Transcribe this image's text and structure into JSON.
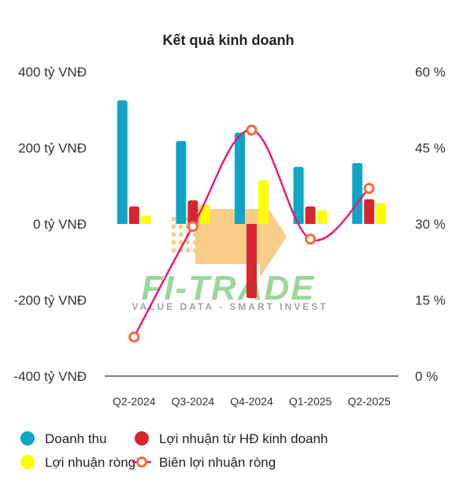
{
  "chart_data": {
    "type": "bar",
    "title": "Kết quả kinh doanh",
    "categories": [
      "Q2-2024",
      "Q3-2024",
      "Q4-2024",
      "Q1-2025",
      "Q2-2025"
    ],
    "series": [
      {
        "name": "Doanh thu",
        "type": "bar",
        "axis": "left",
        "color": "#0ea5c6",
        "values": [
          325,
          218,
          240,
          150,
          160
        ]
      },
      {
        "name": "Lợi nhuận từ HĐ kinh doanh",
        "type": "bar",
        "axis": "left",
        "color": "#d7262f",
        "values": [
          46,
          62,
          -195,
          46,
          65
        ]
      },
      {
        "name": "Lợi nhuận ròng",
        "type": "bar",
        "axis": "left",
        "color": "#ffff00",
        "values": [
          22,
          50,
          115,
          36,
          55
        ]
      },
      {
        "name": "Biên lợi nhuận ròng",
        "type": "line",
        "axis": "right",
        "color": "#e8197d",
        "marker_color": "#f26b3a",
        "values": [
          7.7,
          29.5,
          48.5,
          27.0,
          37.0
        ]
      }
    ],
    "y_left": {
      "ylim": [
        -400,
        400
      ],
      "ticks": [
        400,
        200,
        0,
        -200,
        -400
      ],
      "tick_labels": [
        "400 tỷ VNĐ",
        "200 tỷ VNĐ",
        "0 tỷ VNĐ",
        "-200 tỷ VNĐ",
        "-400 tỷ VNĐ"
      ]
    },
    "y_right": {
      "ylim": [
        0,
        60
      ],
      "ticks": [
        60,
        45,
        30,
        15,
        0
      ],
      "tick_labels": [
        "60 %",
        "45 %",
        "30 %",
        "15 %",
        "0 %"
      ]
    },
    "grid": false,
    "legend_position": "bottom"
  },
  "watermark": {
    "brand": "FI-TRADE",
    "tagline": "VALUE DATA - SMART INVEST",
    "colors": {
      "brand": "#4db848",
      "arrow": "#f5a623",
      "tagline": "#555555"
    }
  }
}
